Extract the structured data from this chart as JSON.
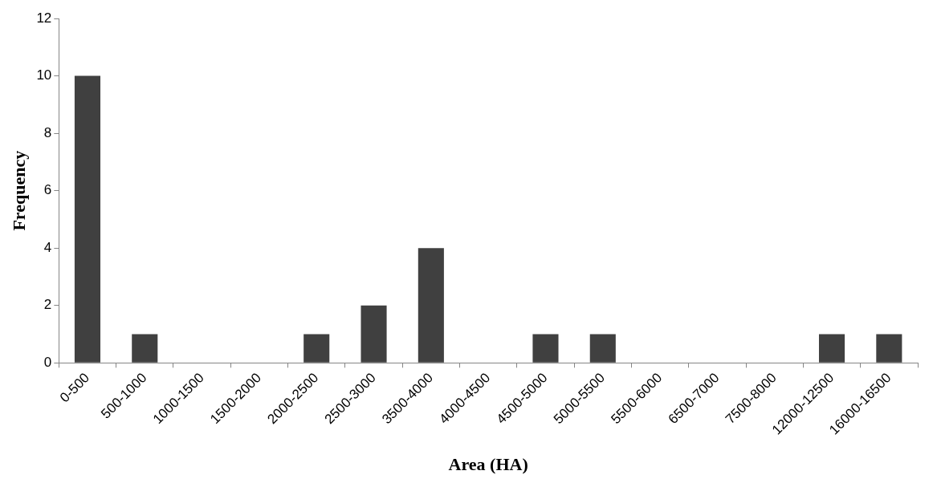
{
  "chart_data": {
    "type": "bar",
    "xlabel": "Area (HA)",
    "ylabel": "Frequency",
    "categories": [
      "0-500",
      "500-1000",
      "1000-1500",
      "1500-2000",
      "2000-2500",
      "2500-3000",
      "3500-4000",
      "4000-4500",
      "4500-5000",
      "5000-5500",
      "5500-6000",
      "6500-7000",
      "7500-8000",
      "12000-12500",
      "16000-16500"
    ],
    "values": [
      10,
      1,
      0,
      0,
      1,
      2,
      4,
      0,
      1,
      1,
      0,
      0,
      0,
      1,
      1
    ],
    "color": "#404040",
    "ylim": [
      0,
      12
    ],
    "yticks": [
      0,
      2,
      4,
      6,
      8,
      10,
      12
    ],
    "grid": false,
    "legend": false
  }
}
